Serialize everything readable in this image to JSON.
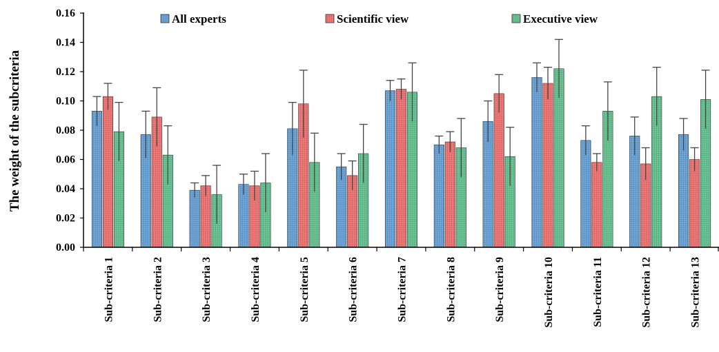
{
  "chart_data": {
    "type": "bar",
    "title": "",
    "xlabel": "",
    "ylabel": "The weight of the subcriteria",
    "ylim": [
      0,
      0.16
    ],
    "yticks": [
      0.0,
      0.02,
      0.04,
      0.06,
      0.08,
      0.1,
      0.12,
      0.14,
      0.16
    ],
    "ytick_labels": [
      "0.00",
      "0.02",
      "0.04",
      "0.06",
      "0.08",
      "0.10",
      "0.12",
      "0.14",
      "0.16"
    ],
    "grid": false,
    "legend_position": "top",
    "categories": [
      "Sub-criteria 1",
      "Sub-criteria 2",
      "Sub-criteria 3",
      "Sub-criteria 4",
      "Sub-criteria 5",
      "Sub-criteria 6",
      "Sub-criteria 7",
      "Sub-criteria 8",
      "Sub-criteria 9",
      "Sub-criteria 10",
      "Sub-criteria 11",
      "Sub-criteria 12",
      "Sub-criteria 13"
    ],
    "series": [
      {
        "name": "All experts",
        "color": "#6FA8DC",
        "values": [
          0.093,
          0.077,
          0.039,
          0.043,
          0.081,
          0.055,
          0.107,
          0.07,
          0.086,
          0.116,
          0.073,
          0.076,
          0.077
        ],
        "errors": [
          0.01,
          0.016,
          0.005,
          0.007,
          0.018,
          0.009,
          0.007,
          0.006,
          0.014,
          0.01,
          0.01,
          0.013,
          0.011
        ]
      },
      {
        "name": "Scientific view",
        "color": "#F47A7A",
        "values": [
          0.103,
          0.089,
          0.042,
          0.042,
          0.098,
          0.049,
          0.108,
          0.072,
          0.105,
          0.112,
          0.058,
          0.057,
          0.06
        ],
        "errors": [
          0.009,
          0.02,
          0.007,
          0.01,
          0.023,
          0.01,
          0.007,
          0.007,
          0.013,
          0.011,
          0.006,
          0.011,
          0.008
        ]
      },
      {
        "name": "Executive view",
        "color": "#6CC896",
        "values": [
          0.079,
          0.063,
          0.036,
          0.044,
          0.058,
          0.064,
          0.106,
          0.068,
          0.062,
          0.122,
          0.093,
          0.103,
          0.101
        ],
        "errors": [
          0.02,
          0.02,
          0.02,
          0.02,
          0.02,
          0.02,
          0.02,
          0.02,
          0.02,
          0.02,
          0.02,
          0.02,
          0.02
        ]
      }
    ]
  }
}
